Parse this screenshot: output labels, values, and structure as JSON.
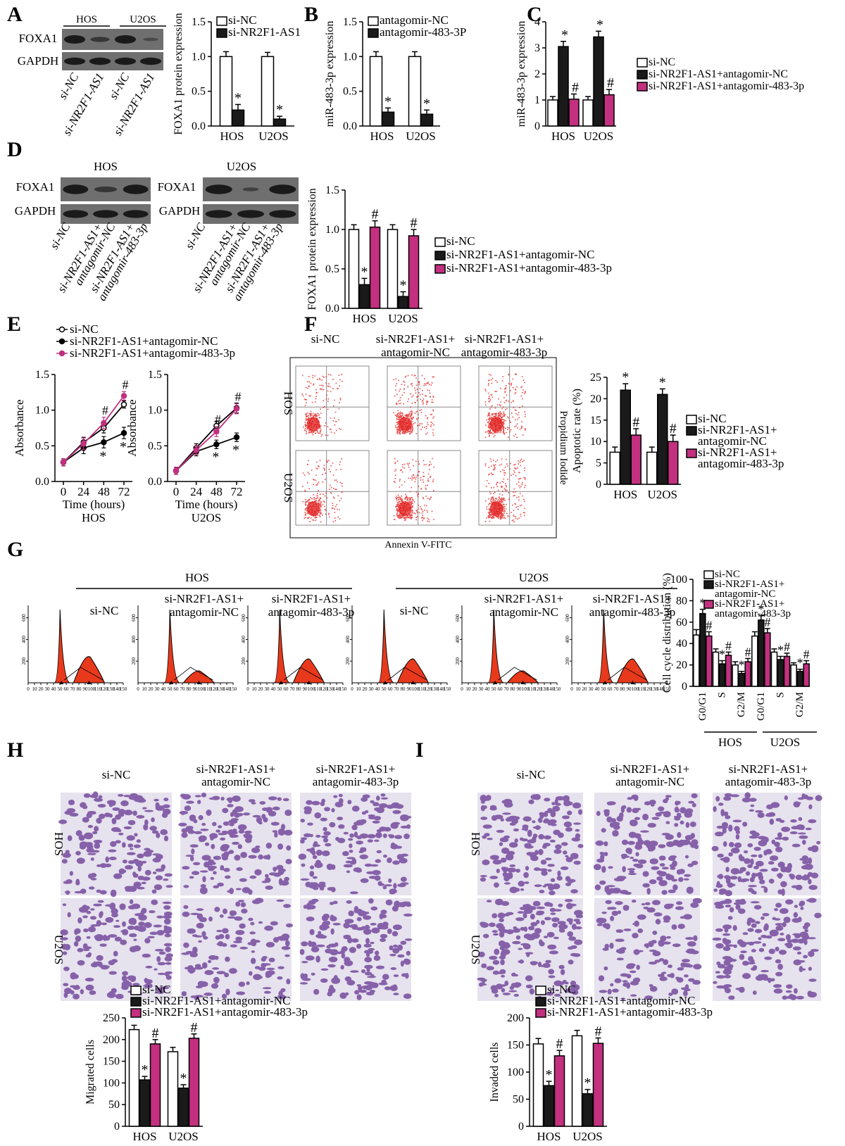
{
  "figure": {
    "panel_letters": [
      "A",
      "B",
      "C",
      "D",
      "E",
      "F",
      "G",
      "H",
      "I"
    ],
    "groups3": [
      "si-NC",
      "si-NR2F1-AS1+antagomir-NC",
      "si-NR2F1-AS1+antagomir-483-3p"
    ],
    "colors": {
      "white": "#ffffff",
      "black": "#1a1a1a",
      "magenta": "#c2307f",
      "flow_dot": "#e0201f",
      "crystal_violet": "#6a3c96",
      "blot_bg": "#6f6f6f"
    },
    "cell_lines": [
      "HOS",
      "U2OS"
    ],
    "symbols": {
      "star": "*",
      "hash": "#"
    }
  },
  "panel_a": {
    "blot": {
      "header_groups": [
        "HOS",
        "U2OS"
      ],
      "rows": [
        "FOXA1",
        "GAPDH"
      ],
      "lanes": [
        "si-NC",
        "si-NR2F1-AS1",
        "si-NC",
        "si-NR2F1-AS1"
      ]
    },
    "legend": [
      "si-NC",
      "si-NR2F1-AS1"
    ]
  },
  "panel_b": {
    "legend": [
      "antagomir-NC",
      "antagomir-483-3P"
    ]
  },
  "panel_d": {
    "blot_groups": [
      "HOS",
      "U2OS"
    ],
    "rows": [
      "FOXA1",
      "GAPDH"
    ],
    "lanes": [
      "si-NC",
      "si-NR2F1-AS1+ antagomir-NC",
      "si-NR2F1-AS1+ antagomir-483-3p"
    ]
  },
  "panel_e": {
    "legend": [
      "si-NC",
      "si-NR2F1-AS1+antagomir-NC",
      "si-NR2F1-AS1+antagomir-483-3p"
    ]
  },
  "panel_f": {
    "col_headers": [
      "si-NC",
      "si-NR2F1-AS1+",
      "antagomir-NC",
      "si-NR2F1-AS1+",
      "antagomir-483-3p"
    ],
    "row_labels": [
      "HOS",
      "U2OS"
    ],
    "xaxis": "Annexin V-FITC",
    "yaxis": "Propidium Iodide",
    "legend": [
      "si-NC",
      "si-NR2F1-AS1+",
      "antagomir-NC",
      "si-NR2F1-AS1+",
      "antagomir-483-3p"
    ]
  },
  "panel_g": {
    "group_headers": [
      "HOS",
      "U2OS"
    ],
    "col_headers": [
      "si-NC",
      "si-NR2F1-AS1+",
      "antagomir-NC",
      "si-NR2F1-AS1+",
      "antagomir-483-3p"
    ],
    "hist_x_ticks": [
      "0",
      "10",
      "20",
      "30",
      "40",
      "50",
      "60",
      "70",
      "80",
      "90",
      "100",
      "110",
      "120",
      "130",
      "140",
      "150"
    ],
    "hist_y_ticks": [
      "200",
      "400",
      "600"
    ],
    "legend": [
      "si-NC",
      "si-NR2F1-AS1+",
      "antagomir-NC",
      "si-NR2F1-AS1+",
      "antagomir-483-3p"
    ],
    "bar_groups": [
      "HOS",
      "U2OS"
    ]
  },
  "panel_h": {
    "col_headers": [
      "si-NC",
      "si-NR2F1-AS1+",
      "antagomir-NC",
      "si-NR2F1-AS1+",
      "antagomir-483-3p"
    ],
    "row_labels": [
      "HOS",
      "U2OS"
    ],
    "legend": [
      "si-NC",
      "si-NR2F1-AS1+antagomir-NC",
      "si-NR2F1-AS1+antagomir-483-3p"
    ]
  },
  "panel_i": {
    "col_headers": [
      "si-NC",
      "si-NR2F1-AS1+",
      "antagomir-NC",
      "si-NR2F1-AS1+",
      "antagomir-483-3p"
    ],
    "row_labels": [
      "HOS",
      "U2OS"
    ],
    "legend": [
      "si-NC",
      "si-NR2F1-AS1+antagomir-NC",
      "si-NR2F1-AS1+antagomir-483-3p"
    ]
  },
  "chart_data": [
    {
      "id": "A",
      "type": "bar",
      "categories": [
        "HOS",
        "U2OS"
      ],
      "ylabel": "FOXA1 protein expression",
      "ylim": [
        0,
        1.5
      ],
      "yticks": [
        0.0,
        0.5,
        1.0,
        1.5
      ],
      "series": [
        {
          "name": "si-NC",
          "values": [
            1.0,
            1.0
          ],
          "errors": [
            0.07,
            0.06
          ],
          "marks": [
            "",
            ""
          ]
        },
        {
          "name": "si-NR2F1-AS1",
          "values": [
            0.23,
            0.1
          ],
          "errors": [
            0.08,
            0.04
          ],
          "marks": [
            "*",
            "*"
          ]
        }
      ]
    },
    {
      "id": "B",
      "type": "bar",
      "categories": [
        "HOS",
        "U2OS"
      ],
      "ylabel": "miR-483-3p expression",
      "ylim": [
        0,
        1.5
      ],
      "yticks": [
        0.0,
        0.5,
        1.0,
        1.5
      ],
      "series": [
        {
          "name": "antagomir-NC",
          "values": [
            1.0,
            1.0
          ],
          "errors": [
            0.07,
            0.07
          ],
          "marks": [
            "",
            ""
          ]
        },
        {
          "name": "antagomir-483-3P",
          "values": [
            0.2,
            0.17
          ],
          "errors": [
            0.06,
            0.06
          ],
          "marks": [
            "*",
            "*"
          ]
        }
      ]
    },
    {
      "id": "C",
      "type": "bar",
      "categories": [
        "HOS",
        "U2OS"
      ],
      "ylabel": "miR-483-3p expression",
      "ylim": [
        0,
        4
      ],
      "yticks": [
        0,
        1,
        2,
        3,
        4
      ],
      "series": [
        {
          "name": "si-NC",
          "values": [
            1.0,
            1.0
          ],
          "errors": [
            0.13,
            0.13
          ],
          "marks": [
            "",
            ""
          ]
        },
        {
          "name": "si-NR2F1-AS1+antagomir-NC",
          "values": [
            3.05,
            3.42
          ],
          "errors": [
            0.2,
            0.22
          ],
          "marks": [
            "*",
            "*"
          ]
        },
        {
          "name": "si-NR2F1-AS1+antagomir-483-3p",
          "values": [
            1.03,
            1.2
          ],
          "errors": [
            0.2,
            0.2
          ],
          "marks": [
            "#",
            "#"
          ]
        }
      ]
    },
    {
      "id": "D",
      "type": "bar",
      "categories": [
        "HOS",
        "U2OS"
      ],
      "ylabel": "FOXA1 protein expression",
      "ylim": [
        0,
        1.5
      ],
      "yticks": [
        0.0,
        0.5,
        1.0,
        1.5
      ],
      "series": [
        {
          "name": "si-NC",
          "values": [
            1.0,
            1.0
          ],
          "errors": [
            0.06,
            0.06
          ],
          "marks": [
            "",
            ""
          ]
        },
        {
          "name": "si-NR2F1-AS1+antagomir-NC",
          "values": [
            0.3,
            0.15
          ],
          "errors": [
            0.08,
            0.06
          ],
          "marks": [
            "*",
            "*"
          ]
        },
        {
          "name": "si-NR2F1-AS1+antagomir-483-3p",
          "values": [
            1.03,
            0.92
          ],
          "errors": [
            0.08,
            0.08
          ],
          "marks": [
            "#",
            "#"
          ]
        }
      ]
    },
    {
      "id": "E-HOS",
      "type": "line",
      "title": "HOS",
      "x": [
        0,
        24,
        48,
        72
      ],
      "xlabel": "Time (hours)",
      "ylabel": "Absorbance",
      "ylim": [
        0,
        1.5
      ],
      "yticks": [
        0.0,
        0.5,
        1.0,
        1.5
      ],
      "series": [
        {
          "name": "si-NC",
          "values": [
            0.27,
            0.55,
            0.75,
            1.08
          ],
          "errors": [
            0.05,
            0.07,
            0.07,
            0.05
          ]
        },
        {
          "name": "si-NR2F1-AS1+antagomir-NC",
          "values": [
            0.27,
            0.47,
            0.55,
            0.68
          ],
          "errors": [
            0.05,
            0.08,
            0.08,
            0.08
          ],
          "marks": [
            "",
            "",
            "*",
            "*"
          ]
        },
        {
          "name": "si-NR2F1-AS1+antagomir-483-3p",
          "values": [
            0.27,
            0.53,
            0.82,
            1.2
          ],
          "errors": [
            0.05,
            0.08,
            0.08,
            0.06
          ],
          "marks": [
            "",
            "",
            "#",
            "#"
          ]
        }
      ]
    },
    {
      "id": "E-U2OS",
      "type": "line",
      "title": "U2OS",
      "x": [
        0,
        24,
        48,
        72
      ],
      "xlabel": "Time (hours)",
      "ylabel": "Absorbance",
      "ylim": [
        0,
        1.5
      ],
      "yticks": [
        0.0,
        0.5,
        1.0,
        1.5
      ],
      "series": [
        {
          "name": "si-NC",
          "values": [
            0.15,
            0.47,
            0.78,
            1.03
          ],
          "errors": [
            0.05,
            0.06,
            0.06,
            0.07
          ]
        },
        {
          "name": "si-NR2F1-AS1+antagomir-NC",
          "values": [
            0.15,
            0.42,
            0.52,
            0.62
          ],
          "errors": [
            0.05,
            0.06,
            0.06,
            0.06
          ],
          "marks": [
            "",
            "",
            "*",
            "*"
          ]
        },
        {
          "name": "si-NR2F1-AS1+antagomir-483-3p",
          "values": [
            0.15,
            0.44,
            0.7,
            1.02
          ],
          "errors": [
            0.05,
            0.06,
            0.07,
            0.07
          ],
          "marks": [
            "",
            "",
            "#",
            "#"
          ]
        }
      ]
    },
    {
      "id": "F",
      "type": "bar",
      "categories": [
        "HOS",
        "U2OS"
      ],
      "ylabel": "Apoptotic rate (%)",
      "ylim": [
        0,
        25
      ],
      "yticks": [
        0,
        5,
        10,
        15,
        20,
        25
      ],
      "series": [
        {
          "name": "si-NC",
          "values": [
            7.5,
            7.5
          ],
          "errors": [
            1.2,
            1.2
          ],
          "marks": [
            "",
            ""
          ]
        },
        {
          "name": "si-NR2F1-AS1+antagomir-NC",
          "values": [
            22.0,
            21.0
          ],
          "errors": [
            1.5,
            1.3
          ],
          "marks": [
            "*",
            "*"
          ]
        },
        {
          "name": "si-NR2F1-AS1+antagomir-483-3p",
          "values": [
            11.5,
            10.0
          ],
          "errors": [
            1.5,
            1.5
          ],
          "marks": [
            "#",
            "#"
          ]
        }
      ]
    },
    {
      "id": "G",
      "type": "bar",
      "categories": [
        "G0/G1",
        "S",
        "G2/M",
        "G0/G1",
        "S",
        "G2/M"
      ],
      "groups": [
        "HOS",
        "U2OS"
      ],
      "ylabel": "Cell cycle distribution (%)",
      "ylim": [
        0,
        100
      ],
      "yticks": [
        0,
        20,
        40,
        60,
        80,
        100
      ],
      "series": [
        {
          "name": "si-NC",
          "values": [
            48,
            32,
            20,
            47,
            32,
            20
          ],
          "errors": [
            5,
            3,
            3,
            4,
            3,
            2
          ],
          "marks": [
            "",
            "",
            "",
            "",
            "",
            ""
          ]
        },
        {
          "name": "si-NR2F1-AS1+antagomir-NC",
          "values": [
            68,
            21,
            12,
            62,
            25,
            14
          ],
          "errors": [
            4,
            3,
            2,
            4,
            3,
            2
          ],
          "marks": [
            "*",
            "*",
            "*",
            "*",
            "*",
            "*"
          ]
        },
        {
          "name": "si-NR2F1-AS1+antagomir-483-3p",
          "values": [
            47,
            29,
            23,
            50,
            28,
            21
          ],
          "errors": [
            4,
            3,
            3,
            4,
            3,
            3
          ],
          "marks": [
            "#",
            "#",
            "#",
            "#",
            "#",
            "#"
          ]
        }
      ]
    },
    {
      "id": "H",
      "type": "bar",
      "categories": [
        "HOS",
        "U2OS"
      ],
      "ylabel": "Migrated cells",
      "ylim": [
        0,
        250
      ],
      "yticks": [
        0,
        50,
        100,
        150,
        200,
        250
      ],
      "series": [
        {
          "name": "si-NC",
          "values": [
            223,
            172
          ],
          "errors": [
            10,
            10
          ],
          "marks": [
            "",
            ""
          ]
        },
        {
          "name": "si-NR2F1-AS1+antagomir-NC",
          "values": [
            107,
            88
          ],
          "errors": [
            8,
            8
          ],
          "marks": [
            "*",
            "*"
          ]
        },
        {
          "name": "si-NR2F1-AS1+antagomir-483-3p",
          "values": [
            190,
            203
          ],
          "errors": [
            10,
            10
          ],
          "marks": [
            "#",
            "#"
          ]
        }
      ]
    },
    {
      "id": "I",
      "type": "bar",
      "categories": [
        "HOS",
        "U2OS"
      ],
      "ylabel": "Invaded cells",
      "ylim": [
        0,
        200
      ],
      "yticks": [
        0,
        50,
        100,
        150,
        200
      ],
      "series": [
        {
          "name": "si-NC",
          "values": [
            152,
            167
          ],
          "errors": [
            10,
            10
          ],
          "marks": [
            "",
            ""
          ]
        },
        {
          "name": "si-NR2F1-AS1+antagomir-NC",
          "values": [
            75,
            60
          ],
          "errors": [
            8,
            8
          ],
          "marks": [
            "*",
            "*"
          ]
        },
        {
          "name": "si-NR2F1-AS1+antagomir-483-3p",
          "values": [
            130,
            153
          ],
          "errors": [
            10,
            10
          ],
          "marks": [
            "#",
            "#"
          ]
        }
      ]
    }
  ]
}
